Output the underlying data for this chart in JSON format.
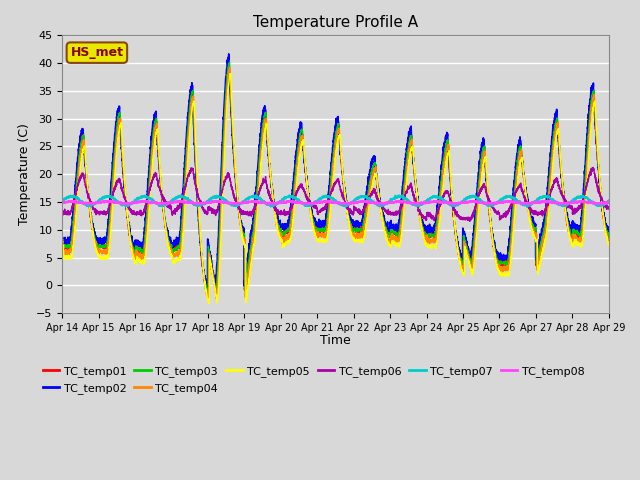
{
  "title": "Temperature Profile A",
  "xlabel": "Time",
  "ylabel": "Temperature (C)",
  "ylim": [
    -5,
    45
  ],
  "background_color": "#d8d8d8",
  "grid_color": "#ffffff",
  "annotation_text": "HS_met",
  "annotation_text_color": "#8b0000",
  "annotation_bg_color": "#e8e800",
  "annotation_border_color": "#8b4513",
  "x_tick_labels": [
    "Apr 14",
    "Apr 15",
    "Apr 16",
    "Apr 17",
    "Apr 18",
    "Apr 19",
    "Apr 20",
    "Apr 21",
    "Apr 22",
    "Apr 23",
    "Apr 24",
    "Apr 25",
    "Apr 26",
    "Apr 27",
    "Apr 28",
    "Apr 29"
  ],
  "y_ticks": [
    -5,
    0,
    5,
    10,
    15,
    20,
    25,
    30,
    35,
    40,
    45
  ],
  "series_colors": [
    "#ff0000",
    "#0000ff",
    "#00cc00",
    "#ff8800",
    "#ffff00",
    "#aa00aa",
    "#00cccc",
    "#ff44ff"
  ],
  "series_labels": [
    "TC_temp01",
    "TC_temp02",
    "TC_temp03",
    "TC_temp04",
    "TC_temp05",
    "TC_temp06",
    "TC_temp07",
    "TC_temp08"
  ],
  "n_days": 15,
  "day_peak_heights": [
    27,
    31,
    30,
    35,
    40,
    31,
    28,
    29,
    22,
    27,
    26,
    25,
    25,
    30,
    35
  ],
  "day_trough_heights": [
    7,
    7,
    6,
    7,
    -1,
    9,
    10,
    10,
    10,
    9,
    9,
    4,
    4,
    10,
    9
  ],
  "night_factor": 0.85
}
